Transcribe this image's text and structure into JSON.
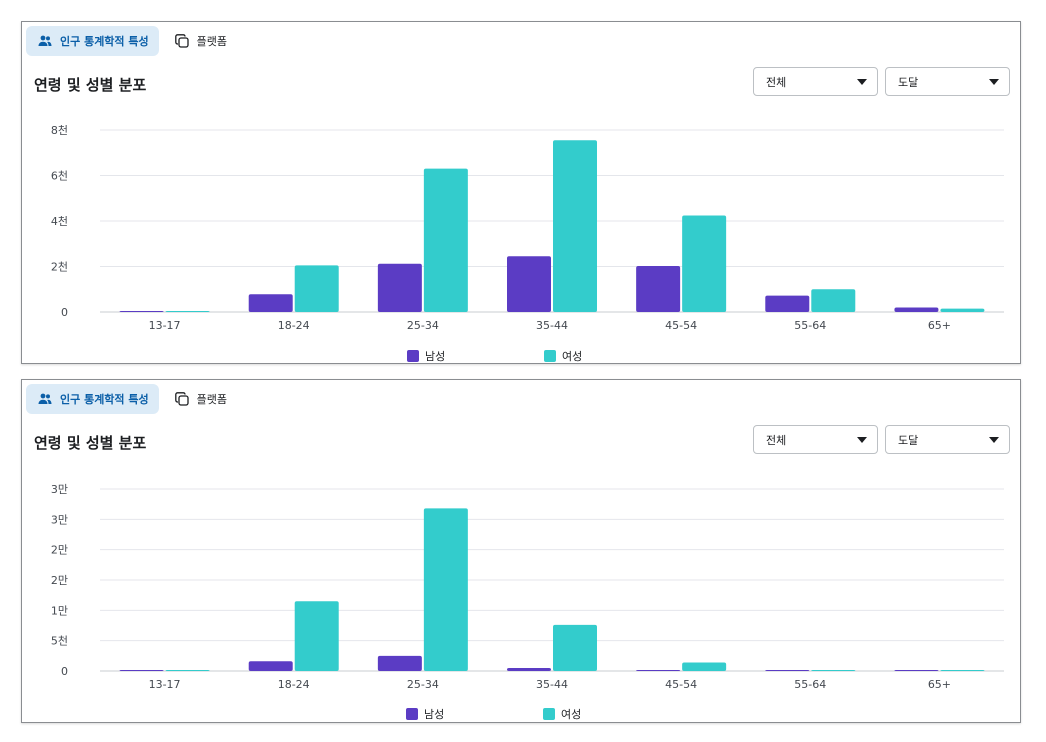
{
  "colors": {
    "male": "#5b3cc4",
    "female": "#33cccc",
    "grid": "#e4e6eb",
    "active_tab_bg": "#dcebf7"
  },
  "panels": [
    {
      "tabs": [
        {
          "label": "인구 통계학적 특성",
          "icon": "people-icon",
          "active": true
        },
        {
          "label": "플랫폼",
          "icon": "copy-icon",
          "active": false
        }
      ],
      "title": "연령 및 성별 분포",
      "dropdowns": [
        {
          "value": "전체"
        },
        {
          "value": "도달"
        }
      ],
      "legend": [
        "남성",
        "여성"
      ]
    },
    {
      "tabs": [
        {
          "label": "인구 통계학적 특성",
          "icon": "people-icon",
          "active": true
        },
        {
          "label": "플랫폼",
          "icon": "copy-icon",
          "active": false
        }
      ],
      "title": "연령 및 성별 분포",
      "dropdowns": [
        {
          "value": "전체"
        },
        {
          "value": "도달"
        }
      ],
      "legend": [
        "남성",
        "여성"
      ]
    }
  ],
  "chart_data": [
    {
      "type": "bar",
      "categories": [
        "13-17",
        "18-24",
        "25-34",
        "35-44",
        "45-54",
        "55-64",
        "65+"
      ],
      "series": [
        {
          "name": "남성",
          "values": [
            30,
            780,
            2120,
            2450,
            2020,
            720,
            200
          ]
        },
        {
          "name": "여성",
          "values": [
            30,
            2050,
            6300,
            7550,
            4240,
            1000,
            150
          ]
        }
      ],
      "yticks": [
        0,
        2000,
        4000,
        6000,
        8000
      ],
      "ytick_labels": [
        "0",
        "2천",
        "4천",
        "6천",
        "8천"
      ],
      "ylim": [
        0,
        8000
      ],
      "grid": true,
      "legend": "bottom"
    },
    {
      "type": "bar",
      "categories": [
        "13-17",
        "18-24",
        "25-34",
        "35-44",
        "45-54",
        "55-64",
        "65+"
      ],
      "series": [
        {
          "name": "남성",
          "values": [
            100,
            1600,
            2500,
            500,
            100,
            100,
            100
          ]
        },
        {
          "name": "여성",
          "values": [
            100,
            11500,
            26800,
            7600,
            1400,
            100,
            100
          ]
        }
      ],
      "yticks": [
        0,
        5000,
        10000,
        15000,
        20000,
        25000,
        30000
      ],
      "ytick_labels": [
        "0",
        "5천",
        "1만",
        "2만",
        "2만",
        "3만",
        "3만"
      ],
      "ylim": [
        0,
        30000
      ],
      "grid": true,
      "legend": "bottom"
    }
  ]
}
